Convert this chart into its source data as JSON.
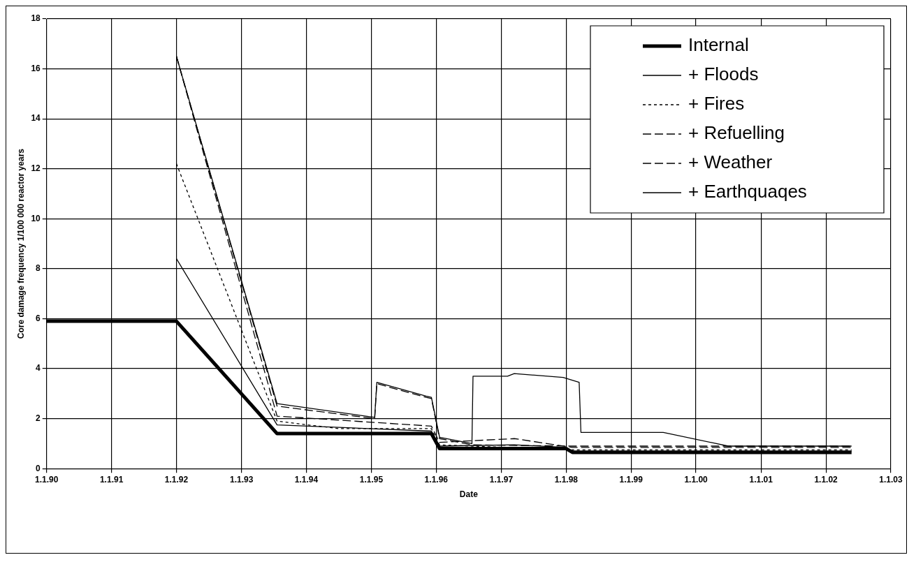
{
  "chart_data": {
    "type": "line",
    "xlabel": "Date",
    "ylabel": "Core damage frequency 1/100 000 reactor years",
    "xlim": [
      "1990-01-01",
      "2003-01-01"
    ],
    "xticks": [
      {
        "value": "1990-01-01",
        "label": "1.1.90"
      },
      {
        "value": "1991-01-01",
        "label": "1.1.91"
      },
      {
        "value": "1992-01-01",
        "label": "1.1.92"
      },
      {
        "value": "1993-01-01",
        "label": "1.1.93"
      },
      {
        "value": "1994-01-01",
        "label": "1.1.94"
      },
      {
        "value": "1995-01-01",
        "label": "1.1.95"
      },
      {
        "value": "1996-01-01",
        "label": "1.1.96"
      },
      {
        "value": "1997-01-01",
        "label": "1.1.97"
      },
      {
        "value": "1998-01-01",
        "label": "1.1.98"
      },
      {
        "value": "1999-01-01",
        "label": "1.1.99"
      },
      {
        "value": "2000-01-01",
        "label": "1.1.00"
      },
      {
        "value": "2001-01-01",
        "label": "1.1.01"
      },
      {
        "value": "2002-01-01",
        "label": "1.1.02"
      },
      {
        "value": "2003-01-01",
        "label": "1.1.03"
      }
    ],
    "ylim": [
      0,
      18
    ],
    "yticks": [
      0,
      2,
      4,
      6,
      8,
      10,
      12,
      14,
      16,
      18
    ],
    "grid": true,
    "legend": "top right",
    "marker": "none",
    "series": [
      {
        "name": "Internal",
        "color": "#000000",
        "line_style": "solid",
        "x": [
          "1990-01-01",
          "1992-01-01",
          "1993-07-20",
          "1995-12-05",
          "1996-01-20",
          "1998-01-01",
          "1998-02-05",
          "2002-05-25"
        ],
        "values": [
          5.9,
          5.9,
          1.4,
          1.4,
          0.8,
          0.8,
          0.65,
          0.65
        ]
      },
      {
        "name": "+ Floods",
        "color": "#000000",
        "line_style": "solid",
        "x": [
          "1992-01-01",
          "1993-07-20",
          "1995-12-05",
          "1996-01-20",
          "1997-03-15",
          "1998-01-01",
          "1998-02-05",
          "2002-05-25"
        ],
        "values": [
          8.4,
          1.75,
          1.5,
          0.9,
          0.95,
          0.85,
          0.7,
          0.7
        ]
      },
      {
        "name": "+ Fires",
        "color": "#000000",
        "line_style": "dotted",
        "x": [
          "1992-01-01",
          "1993-07-20",
          "1994-07-01",
          "1995-12-05",
          "1996-01-20",
          "1998-02-05",
          "2002-05-25"
        ],
        "values": [
          12.2,
          1.9,
          1.6,
          1.6,
          0.95,
          0.75,
          0.75
        ]
      },
      {
        "name": "+ Refuelling",
        "color": "#000000",
        "line_style": "dashed",
        "x": [
          "1992-01-01",
          "1993-07-20",
          "1995-12-05",
          "1996-01-20",
          "1997-03-15",
          "1998-02-05",
          "2002-05-25"
        ],
        "values": [
          16.5,
          2.1,
          1.7,
          1.05,
          1.2,
          0.85,
          0.85
        ]
      },
      {
        "name": "+ Weather",
        "color": "#000000",
        "line_style": "dashed",
        "x": [
          "1992-01-01",
          "1993-07-20",
          "1995-01-20",
          "1995-02-01",
          "1995-11-05",
          "1995-12-05",
          "1996-01-20",
          "1996-07-20",
          "1998-02-05",
          "2002-05-25"
        ],
        "values": [
          16.5,
          2.5,
          2.0,
          3.4,
          2.85,
          2.8,
          1.2,
          0.95,
          0.9,
          0.9
        ]
      },
      {
        "name": "+ Earthquaqes",
        "color": "#000000",
        "line_style": "solid",
        "x": [
          "1992-01-01",
          "1993-07-20",
          "1995-01-20",
          "1995-02-01",
          "1995-11-05",
          "1995-12-05",
          "1996-01-20",
          "1996-07-20",
          "1996-07-26",
          "1997-02-05",
          "1997-03-15",
          "1997-12-15",
          "1998-03-15",
          "1998-03-25",
          "1999-07-01",
          "2000-07-01",
          "2002-05-25"
        ],
        "values": [
          16.5,
          2.6,
          2.05,
          3.45,
          2.9,
          2.85,
          1.25,
          1.0,
          3.7,
          3.7,
          3.8,
          3.65,
          3.45,
          1.45,
          1.45,
          0.9,
          0.9
        ]
      }
    ]
  }
}
